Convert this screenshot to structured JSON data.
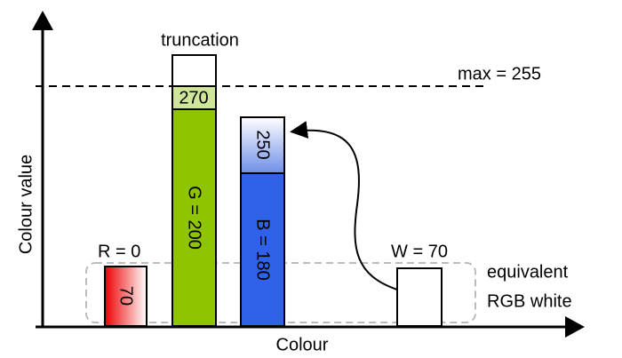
{
  "axes": {
    "y_label": "Colour value",
    "x_label": "Colour"
  },
  "max_line": "max = 255",
  "truncation": "truncation",
  "bars": [
    {
      "label": "R = 0",
      "inner": "70"
    },
    {
      "label": "G = 200",
      "top": "270"
    },
    {
      "label": "B = 180",
      "top": "250"
    },
    {
      "label": "W = 70"
    }
  ],
  "white_note": [
    "equivalent",
    "RGB white"
  ]
}
